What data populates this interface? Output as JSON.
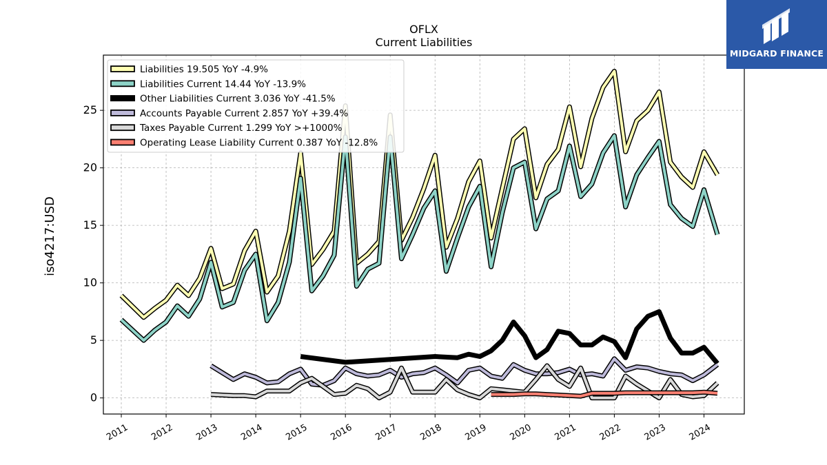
{
  "chart_data": {
    "type": "line",
    "title": "OFLX",
    "subtitle": "Current  Liabilities",
    "ylabel": "iso4217:USD",
    "xlabel": "",
    "xlim": [
      2010.6,
      2024.9
    ],
    "ylim": [
      -1.4,
      29.8
    ],
    "yticks": [
      0,
      5,
      10,
      15,
      20,
      25
    ],
    "xticks": [
      2011,
      2012,
      2013,
      2014,
      2015,
      2016,
      2017,
      2018,
      2019,
      2020,
      2021,
      2022,
      2023,
      2024
    ],
    "grid": true,
    "legend_position": "top-left",
    "series": [
      {
        "name": "Liabilities",
        "legend": "Liabilities  19.505 YoY -4.9%",
        "color": "#ffffb3",
        "x": [
          2011.0,
          2011.5,
          2011.75,
          2012.0,
          2012.25,
          2012.5,
          2012.75,
          2013.0,
          2013.25,
          2013.5,
          2013.75,
          2014.0,
          2014.25,
          2014.5,
          2014.75,
          2015.0,
          2015.25,
          2015.5,
          2015.75,
          2016.0,
          2016.25,
          2016.5,
          2016.75,
          2017.0,
          2017.25,
          2017.5,
          2017.75,
          2018.0,
          2018.25,
          2018.5,
          2018.75,
          2019.0,
          2019.25,
          2019.5,
          2019.75,
          2020.0,
          2020.25,
          2020.5,
          2020.75,
          2021.0,
          2021.25,
          2021.5,
          2021.75,
          2022.0,
          2022.25,
          2022.5,
          2022.75,
          2023.0,
          2023.25,
          2023.5,
          2023.75,
          2024.0,
          2024.3
        ],
        "y": [
          8.9,
          7.0,
          7.8,
          8.5,
          9.8,
          8.9,
          10.4,
          13.0,
          9.5,
          9.9,
          12.8,
          14.5,
          9.2,
          10.6,
          14.5,
          21.3,
          11.6,
          12.9,
          14.5,
          25.4,
          11.7,
          12.5,
          13.6,
          24.6,
          13.7,
          15.7,
          18.2,
          21.1,
          13.1,
          15.6,
          18.8,
          20.6,
          13.9,
          18.2,
          22.5,
          23.4,
          17.4,
          20.3,
          21.6,
          25.3,
          20.1,
          24.3,
          27.0,
          28.4,
          21.4,
          24.1,
          25.0,
          26.6,
          20.5,
          19.2,
          18.3,
          21.4,
          19.4
        ]
      },
      {
        "name": "Liabilities Current",
        "legend": "Liabilities Current  14.44 YoY -13.9%",
        "color": "#8dd3c7",
        "x": [
          2011.0,
          2011.5,
          2011.75,
          2012.0,
          2012.25,
          2012.5,
          2012.75,
          2013.0,
          2013.25,
          2013.5,
          2013.75,
          2014.0,
          2014.25,
          2014.5,
          2014.75,
          2015.0,
          2015.25,
          2015.5,
          2015.75,
          2016.0,
          2016.25,
          2016.5,
          2016.75,
          2017.0,
          2017.25,
          2017.5,
          2017.75,
          2018.0,
          2018.25,
          2018.5,
          2018.75,
          2019.0,
          2019.25,
          2019.5,
          2019.75,
          2020.0,
          2020.25,
          2020.5,
          2020.75,
          2021.0,
          2021.25,
          2021.5,
          2021.75,
          2022.0,
          2022.25,
          2022.5,
          2022.75,
          2023.0,
          2023.25,
          2023.5,
          2023.75,
          2024.0,
          2024.3
        ],
        "y": [
          6.8,
          5.0,
          5.9,
          6.6,
          8.0,
          7.1,
          8.6,
          11.8,
          7.9,
          8.3,
          11.1,
          12.5,
          6.7,
          8.3,
          11.8,
          19.1,
          9.3,
          10.6,
          12.4,
          22.7,
          9.7,
          11.2,
          11.7,
          22.7,
          12.1,
          14.2,
          16.5,
          18.0,
          11.0,
          13.9,
          16.6,
          18.4,
          11.4,
          16.1,
          20.0,
          20.5,
          14.7,
          17.3,
          18.0,
          21.9,
          17.5,
          18.6,
          21.3,
          22.8,
          16.6,
          19.4,
          20.9,
          22.3,
          16.8,
          15.6,
          14.9,
          18.1,
          14.2
        ]
      },
      {
        "name": "Other Liabilities Current",
        "legend": "Other Liabilities Current  3.036 YoY -41.5%",
        "color": "#000000",
        "x": [
          2015.0,
          2016.0,
          2017.0,
          2018.0,
          2018.5,
          2018.75,
          2019.0,
          2019.25,
          2019.5,
          2019.75,
          2020.0,
          2020.25,
          2020.5,
          2020.75,
          2021.0,
          2021.25,
          2021.5,
          2021.75,
          2022.0,
          2022.25,
          2022.5,
          2022.75,
          2023.0,
          2023.25,
          2023.5,
          2023.75,
          2024.0,
          2024.3
        ],
        "y": [
          3.6,
          3.1,
          3.35,
          3.6,
          3.5,
          3.8,
          3.6,
          4.1,
          5.0,
          6.6,
          5.4,
          3.5,
          4.2,
          5.8,
          5.6,
          4.6,
          4.6,
          5.3,
          4.9,
          3.5,
          6.0,
          7.1,
          7.5,
          5.2,
          3.9,
          3.9,
          4.4,
          3.0
        ]
      },
      {
        "name": "Accounts Payable Current",
        "legend": "Accounts Payable Current  2.857 YoY +39.4%",
        "color": "#bebada",
        "x": [
          2013.0,
          2013.5,
          2013.75,
          2014.0,
          2014.25,
          2014.5,
          2014.75,
          2015.0,
          2015.25,
          2015.5,
          2015.75,
          2016.0,
          2016.25,
          2016.5,
          2016.75,
          2017.0,
          2017.25,
          2017.5,
          2017.75,
          2018.0,
          2018.25,
          2018.5,
          2018.75,
          2019.0,
          2019.25,
          2019.5,
          2019.75,
          2020.0,
          2020.25,
          2020.5,
          2020.75,
          2021.0,
          2021.25,
          2021.5,
          2021.75,
          2022.0,
          2022.25,
          2022.5,
          2022.75,
          2023.0,
          2023.25,
          2023.5,
          2023.75,
          2024.0,
          2024.3
        ],
        "y": [
          2.8,
          1.6,
          2.1,
          1.8,
          1.3,
          1.4,
          2.1,
          2.5,
          1.2,
          1.1,
          1.5,
          2.6,
          2.1,
          1.9,
          2.0,
          2.4,
          1.8,
          2.1,
          2.2,
          2.6,
          2.0,
          1.3,
          2.4,
          2.6,
          1.9,
          1.7,
          2.9,
          2.4,
          2.1,
          2.1,
          2.2,
          2.5,
          2.0,
          2.1,
          1.9,
          3.4,
          2.4,
          2.7,
          2.6,
          2.3,
          2.1,
          2.0,
          1.5,
          2.0,
          2.9
        ]
      },
      {
        "name": "Taxes Payable Current",
        "legend": "Taxes Payable Current  1.299 YoY >+1000%",
        "color": "#d9d9d9",
        "x": [
          2013.0,
          2013.5,
          2013.75,
          2014.0,
          2014.25,
          2014.5,
          2014.75,
          2015.0,
          2015.25,
          2015.5,
          2015.75,
          2016.0,
          2016.25,
          2016.5,
          2016.75,
          2017.0,
          2017.25,
          2017.5,
          2017.75,
          2018.0,
          2018.25,
          2018.5,
          2018.75,
          2019.0,
          2019.25,
          2019.5,
          2019.75,
          2020.0,
          2020.25,
          2020.5,
          2020.75,
          2021.0,
          2021.25,
          2021.5,
          2021.75,
          2022.0,
          2022.25,
          2022.5,
          2022.75,
          2023.0,
          2023.25,
          2023.5,
          2023.75,
          2024.0,
          2024.3
        ],
        "y": [
          0.3,
          0.2,
          0.2,
          0.1,
          0.6,
          0.6,
          0.6,
          1.3,
          1.7,
          1.0,
          0.3,
          0.4,
          1.1,
          0.8,
          0.0,
          0.5,
          2.6,
          0.5,
          0.5,
          0.5,
          1.6,
          0.7,
          0.3,
          0.0,
          0.8,
          0.7,
          0.6,
          0.5,
          1.6,
          2.8,
          1.6,
          1.0,
          2.6,
          0.0,
          0.0,
          0.0,
          1.9,
          1.2,
          0.6,
          0.0,
          1.6,
          0.3,
          0.1,
          0.2,
          1.3
        ]
      },
      {
        "name": "Operating Lease Liability Current",
        "legend": "Operating Lease Liability Current  0.387 YoY -12.8%",
        "color": "#fb8072",
        "x": [
          2019.25,
          2019.5,
          2019.75,
          2020.0,
          2020.25,
          2020.5,
          2020.75,
          2021.0,
          2021.25,
          2021.5,
          2021.75,
          2022.0,
          2022.25,
          2022.5,
          2022.75,
          2023.0,
          2023.25,
          2023.5,
          2023.75,
          2024.0,
          2024.3
        ],
        "y": [
          0.3,
          0.3,
          0.3,
          0.35,
          0.35,
          0.3,
          0.25,
          0.2,
          0.15,
          0.4,
          0.4,
          0.4,
          0.45,
          0.45,
          0.45,
          0.45,
          0.45,
          0.45,
          0.45,
          0.5,
          0.4
        ]
      }
    ]
  },
  "logo": {
    "text": "MIDGARD FINANCE",
    "color": "#2b59a8"
  }
}
